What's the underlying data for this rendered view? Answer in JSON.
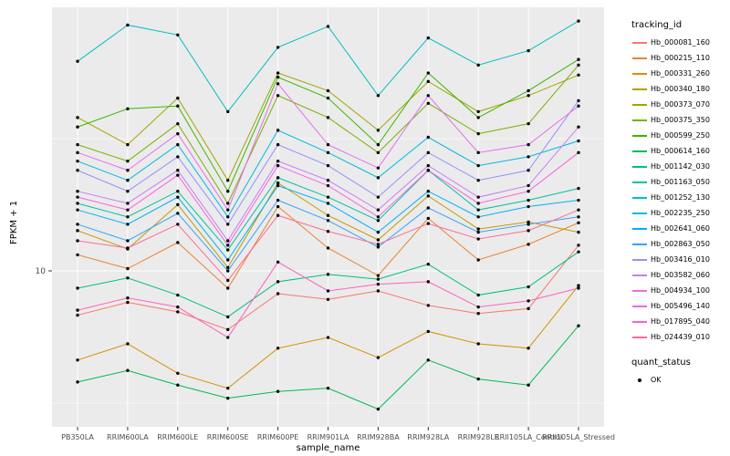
{
  "figure": {
    "background": "#FFFFFF",
    "panel_color": "#EBEBEB",
    "grid_color": "#FFFFFF",
    "tick_label_color": "#4D4D4D"
  },
  "chart_data": {
    "type": "line",
    "title": "",
    "xlabel": "sample_name",
    "ylabel": "FPKM + 1",
    "y_scale": "log10",
    "y_ticks": [
      10
    ],
    "y_tick_labels": [
      "10"
    ],
    "point_color": "#000000",
    "categories": [
      "PB350LA",
      "RRIM600LA",
      "RRIM600LE",
      "RRIM600SE",
      "RRIM600PE",
      "RRIM901LA",
      "RRIM928BA",
      "RRIM928LA",
      "RRIM928LE",
      "RRII105LA_Control",
      "RRII105LA_Stressed"
    ],
    "series": [
      {
        "name": "Hb_000081_160",
        "color": "#F8766D",
        "values": [
          6.8,
          7.6,
          7.0,
          6.0,
          8.2,
          7.8,
          8.4,
          7.4,
          6.9,
          7.2,
          12.5
        ]
      },
      {
        "name": "Hb_000215_110",
        "color": "#EA8331",
        "values": [
          11.5,
          10.2,
          12.8,
          8.6,
          17.5,
          12.2,
          9.6,
          15.8,
          11.0,
          12.6,
          15.2
        ]
      },
      {
        "name": "Hb_000331_260",
        "color": "#D89000",
        "values": [
          4.6,
          5.3,
          4.1,
          3.6,
          5.1,
          5.6,
          4.7,
          5.9,
          5.3,
          5.1,
          8.8
        ]
      },
      {
        "name": "Hb_000340_180",
        "color": "#C09B00",
        "values": [
          14.2,
          12.1,
          17.8,
          10.3,
          21.5,
          16.2,
          13.1,
          19.2,
          14.4,
          15.3,
          14.0
        ]
      },
      {
        "name": "Hb_000373_070",
        "color": "#A3A500",
        "values": [
          38,
          30,
          45,
          22,
          56,
          48,
          34,
          52,
          40,
          46,
          55
        ]
      },
      {
        "name": "Hb_000375_350",
        "color": "#7CAE00",
        "values": [
          30,
          26,
          36,
          18,
          46,
          38,
          28,
          43,
          33,
          36,
          60
        ]
      },
      {
        "name": "Hb_000599_250",
        "color": "#39B600",
        "values": [
          35,
          41,
          42,
          20,
          54,
          45,
          30,
          56,
          38,
          48,
          63
        ]
      },
      {
        "name": "Hb_000614_160",
        "color": "#00BB4E",
        "values": [
          3.8,
          4.2,
          3.7,
          3.3,
          3.5,
          3.6,
          3.0,
          4.6,
          3.9,
          3.7,
          6.2
        ]
      },
      {
        "name": "Hb_001142_030",
        "color": "#00BF7D",
        "values": [
          8.6,
          9.4,
          8.1,
          6.7,
          9.1,
          9.7,
          9.3,
          10.6,
          8.1,
          8.7,
          11.8
        ]
      },
      {
        "name": "Hb_001163_050",
        "color": "#00C1A3",
        "values": [
          18,
          16,
          20,
          12,
          22.5,
          19,
          15.5,
          24,
          17,
          18.5,
          20.5
        ]
      },
      {
        "name": "Hb_001252_130",
        "color": "#00BFC4",
        "values": [
          62,
          85,
          78,
          40,
          70,
          84,
          46,
          76,
          60,
          68,
          88
        ]
      },
      {
        "name": "Hb_002235_250",
        "color": "#00BAE0",
        "values": [
          26,
          22,
          30,
          16,
          34,
          28,
          22.5,
          32,
          25,
          27,
          31
        ]
      },
      {
        "name": "Hb_002641_060",
        "color": "#00B0F6",
        "values": [
          17,
          15,
          19,
          11,
          21,
          18,
          14,
          20,
          16,
          17.5,
          18.5
        ]
      },
      {
        "name": "Hb_002863_050",
        "color": "#35A2FF",
        "values": [
          15,
          13,
          16.5,
          10,
          18.5,
          15.5,
          12.3,
          17.3,
          14,
          15,
          16
        ]
      },
      {
        "name": "Hb_003416_010",
        "color": "#9590FF",
        "values": [
          24,
          20,
          27,
          15,
          30,
          25,
          19,
          28,
          22,
          24,
          44
        ]
      },
      {
        "name": "Hb_003582_060",
        "color": "#C77CFF",
        "values": [
          20,
          18,
          24,
          13,
          26,
          22,
          17,
          25,
          19,
          21,
          35
        ]
      },
      {
        "name": "Hb_004934_100",
        "color": "#E76BF3",
        "values": [
          28,
          24,
          33,
          17,
          51,
          30,
          24.5,
          46,
          28,
          30,
          42
        ]
      },
      {
        "name": "Hb_005496_140",
        "color": "#FA62DB",
        "values": [
          19,
          17,
          23,
          12.5,
          25,
          21,
          16,
          24,
          18,
          20,
          28
        ]
      },
      {
        "name": "Hb_017895_040",
        "color": "#FF62BC",
        "values": [
          7.1,
          7.9,
          7.3,
          5.6,
          10.8,
          8.4,
          8.9,
          9.1,
          7.3,
          7.7,
          8.6
        ]
      },
      {
        "name": "Hb_024439_010",
        "color": "#FF6A98",
        "values": [
          13,
          12.2,
          15,
          9.2,
          16.2,
          14.1,
          12.6,
          15.1,
          13.2,
          14.2,
          17
        ]
      }
    ],
    "legend": {
      "color_legend_title": "tracking_id",
      "shape_legend_title": "quant_status",
      "shape_legend_items": [
        "OK"
      ]
    }
  }
}
